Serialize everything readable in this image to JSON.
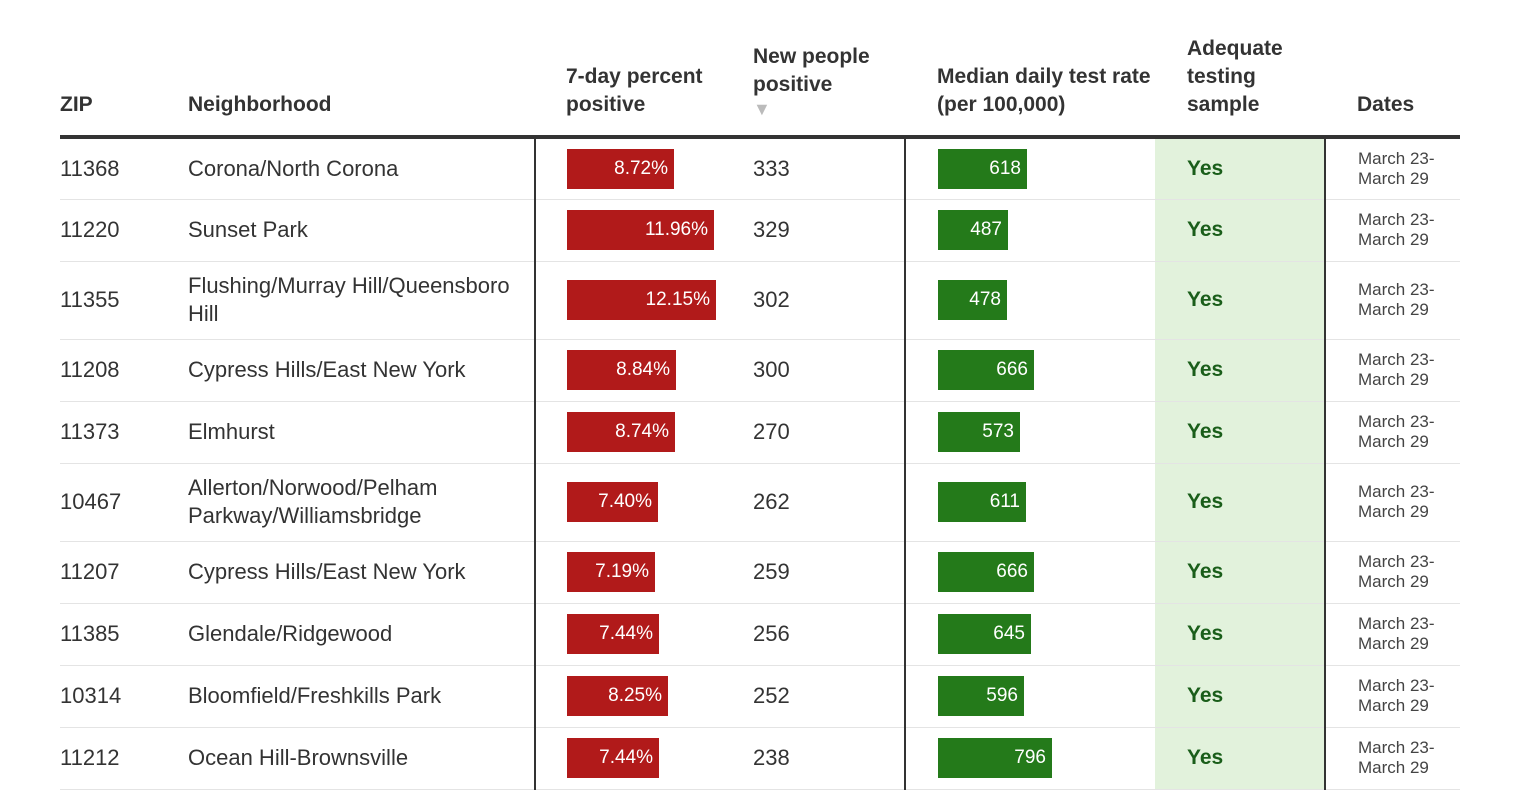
{
  "chart_data": {
    "type": "table",
    "columns": {
      "zip": "ZIP",
      "neighborhood": "Neighborhood",
      "pct_positive": "7-day percent positive",
      "new_positive": "New people positive",
      "test_rate": "Median daily test rate (per 100,000)",
      "adequate": "Adequate testing sample",
      "dates": "Dates"
    },
    "sort_indicator": "▼",
    "pct_scale_max": 20,
    "rate_scale_max": 1200,
    "colors": {
      "pct_bar": "#b11a1a",
      "rate_bar": "#247a1a",
      "adequate_bg": "#e2f2dc",
      "adequate_text": "#1a5e1a"
    },
    "rows": [
      {
        "zip": "11368",
        "neighborhood": "Corona/North Corona",
        "pct": 8.72,
        "pct_label": "8.72%",
        "new": "333",
        "rate": 618,
        "rate_label": "618",
        "adequate": "Yes",
        "date_start": "March 23-",
        "date_end": "March 29"
      },
      {
        "zip": "11220",
        "neighborhood": "Sunset Park",
        "pct": 11.96,
        "pct_label": "11.96%",
        "new": "329",
        "rate": 487,
        "rate_label": "487",
        "adequate": "Yes",
        "date_start": "March 23-",
        "date_end": "March 29"
      },
      {
        "zip": "11355",
        "neighborhood": "Flushing/Murray Hill/Queensboro Hill",
        "pct": 12.15,
        "pct_label": "12.15%",
        "new": "302",
        "rate": 478,
        "rate_label": "478",
        "adequate": "Yes",
        "date_start": "March 23-",
        "date_end": "March 29"
      },
      {
        "zip": "11208",
        "neighborhood": "Cypress Hills/East New York",
        "pct": 8.84,
        "pct_label": "8.84%",
        "new": "300",
        "rate": 666,
        "rate_label": "666",
        "adequate": "Yes",
        "date_start": "March 23-",
        "date_end": "March 29"
      },
      {
        "zip": "11373",
        "neighborhood": "Elmhurst",
        "pct": 8.74,
        "pct_label": "8.74%",
        "new": "270",
        "rate": 573,
        "rate_label": "573",
        "adequate": "Yes",
        "date_start": "March 23-",
        "date_end": "March 29"
      },
      {
        "zip": "10467",
        "neighborhood": "Allerton/Norwood/Pelham Parkway/Williamsbridge",
        "pct": 7.4,
        "pct_label": "7.40%",
        "new": "262",
        "rate": 611,
        "rate_label": "611",
        "adequate": "Yes",
        "date_start": "March 23-",
        "date_end": "March 29"
      },
      {
        "zip": "11207",
        "neighborhood": "Cypress Hills/East New York",
        "pct": 7.19,
        "pct_label": "7.19%",
        "new": "259",
        "rate": 666,
        "rate_label": "666",
        "adequate": "Yes",
        "date_start": "March 23-",
        "date_end": "March 29"
      },
      {
        "zip": "11385",
        "neighborhood": "Glendale/Ridgewood",
        "pct": 7.44,
        "pct_label": "7.44%",
        "new": "256",
        "rate": 645,
        "rate_label": "645",
        "adequate": "Yes",
        "date_start": "March 23-",
        "date_end": "March 29"
      },
      {
        "zip": "10314",
        "neighborhood": "Bloomfield/Freshkills Park",
        "pct": 8.25,
        "pct_label": "8.25%",
        "new": "252",
        "rate": 596,
        "rate_label": "596",
        "adequate": "Yes",
        "date_start": "March 23-",
        "date_end": "March 29"
      },
      {
        "zip": "11212",
        "neighborhood": "Ocean Hill-Brownsville",
        "pct": 7.44,
        "pct_label": "7.44%",
        "new": "238",
        "rate": 796,
        "rate_label": "796",
        "adequate": "Yes",
        "date_start": "March 23-",
        "date_end": "March 29"
      }
    ]
  }
}
